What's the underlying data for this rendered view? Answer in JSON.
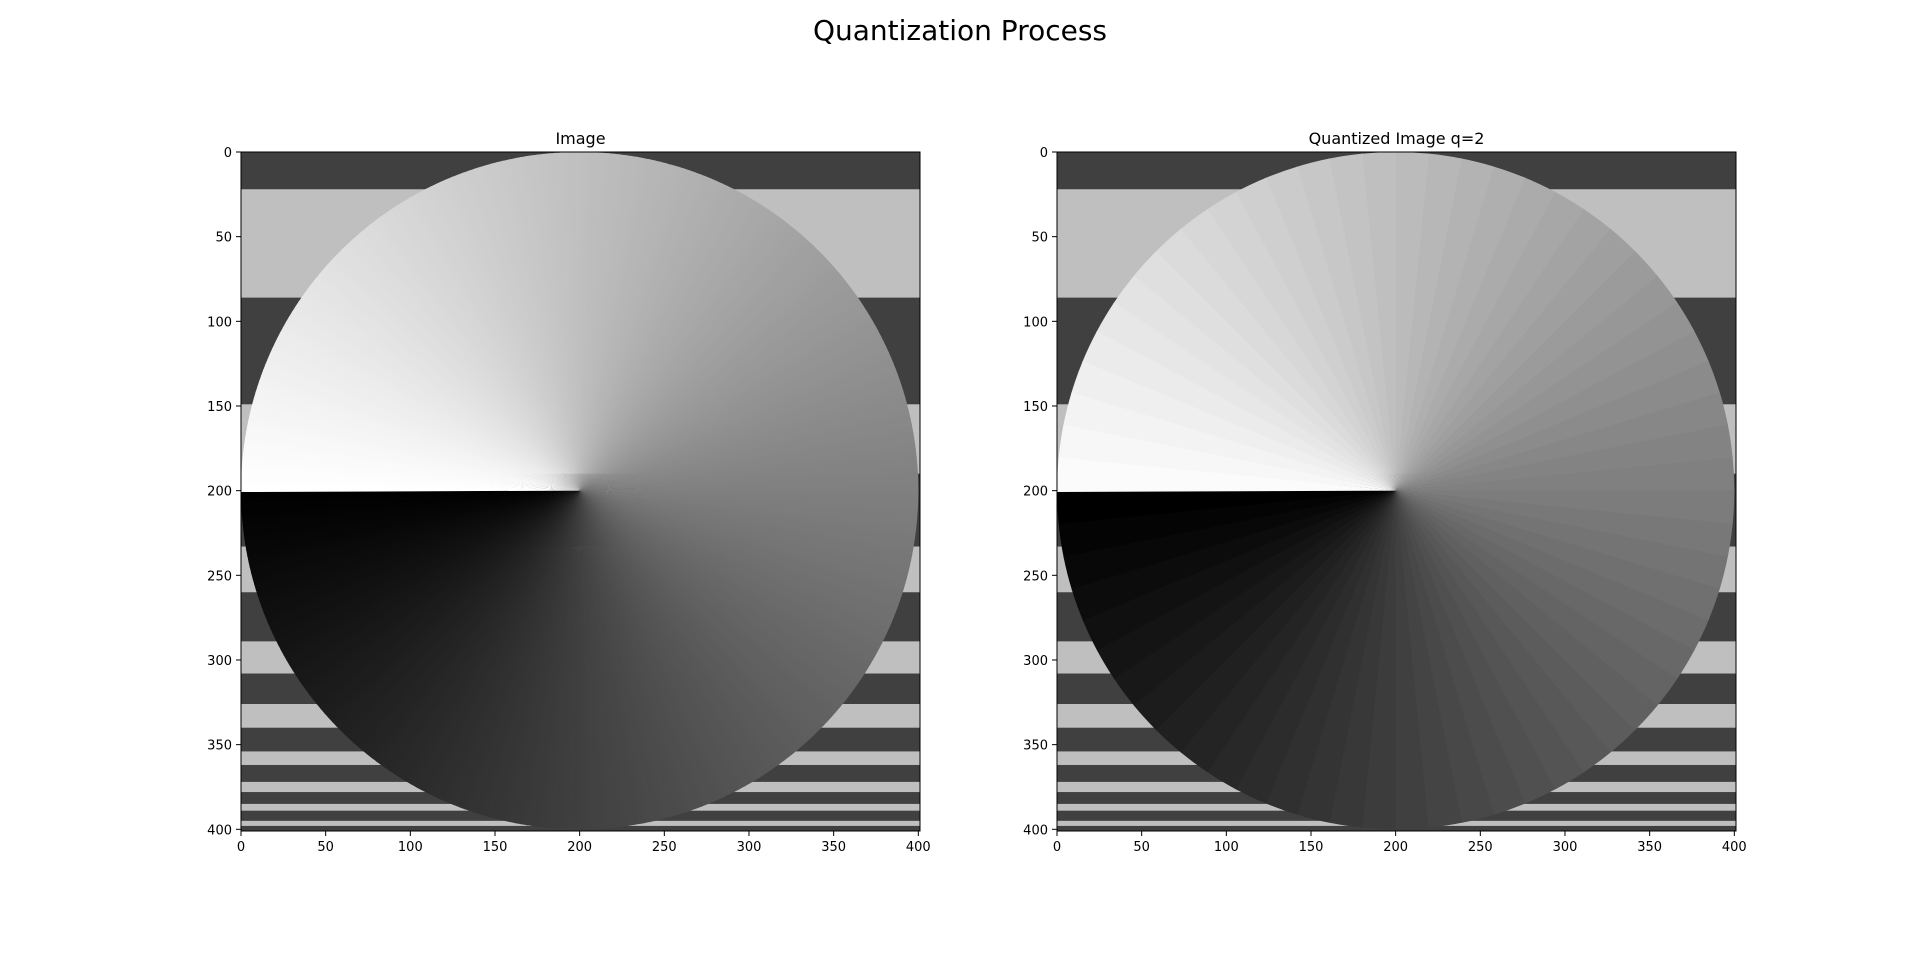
{
  "figure": {
    "suptitle": "Quantization Process"
  },
  "chart_data": [
    {
      "type": "heatmap",
      "title": "Image",
      "colormap": "gray",
      "xlim": [
        0,
        401
      ],
      "ylim": [
        401,
        0
      ],
      "xticks": [
        0,
        50,
        100,
        150,
        200,
        250,
        300,
        350,
        400
      ],
      "yticks": [
        0,
        50,
        100,
        150,
        200,
        250,
        300,
        350,
        400
      ],
      "quantization_q": null,
      "content": {
        "circle_center": [
          200,
          200
        ],
        "circle_radius": 200,
        "circle_fill": "angular gradient (black at left-lower edge, white at left-upper edge)",
        "background_stripes": "horizontal stripes alternating dark gray #404040 and light gray #bfbfbf, narrowing toward the bottom"
      }
    },
    {
      "type": "heatmap",
      "title": "Quantized Image q=2",
      "colormap": "gray",
      "xlim": [
        0,
        401
      ],
      "ylim": [
        401,
        0
      ],
      "xticks": [
        0,
        50,
        100,
        150,
        200,
        250,
        300,
        350,
        400
      ],
      "yticks": [
        0,
        50,
        100,
        150,
        200,
        250,
        300,
        350,
        400
      ],
      "quantization_q": 2,
      "content": {
        "circle_center": [
          200,
          200
        ],
        "circle_radius": 200,
        "circle_fill": "angular gradient quantized into discrete wedges",
        "background_stripes": "horizontal stripes alternating dark gray #404040 and light gray #bfbfbf, narrowing toward the bottom"
      }
    }
  ],
  "colors": {
    "dark_stripe": "#404040",
    "light_stripe": "#bfbfbf",
    "axes_frame": "#000000"
  }
}
